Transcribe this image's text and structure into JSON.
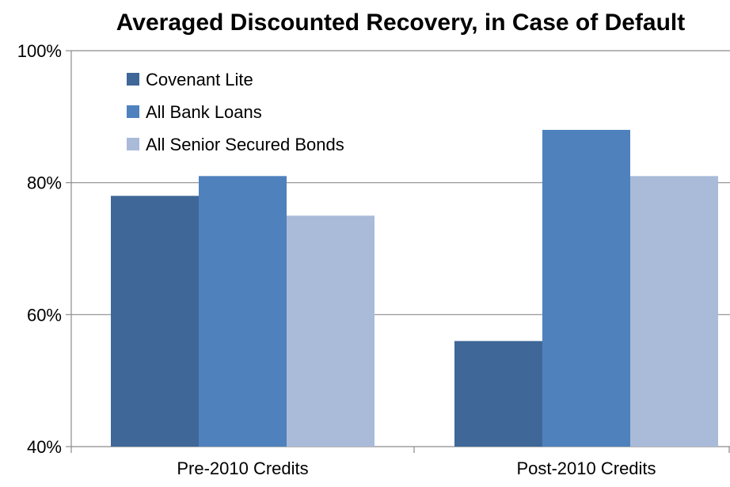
{
  "chart_data": {
    "type": "bar",
    "title": "Averaged Discounted Recovery, in Case of Default",
    "xlabel": "",
    "ylabel": "",
    "categories": [
      "Pre-2010 Credits",
      "Post-2010 Credits"
    ],
    "series": [
      {
        "name": "Covenant Lite",
        "values": [
          78,
          56
        ],
        "color": "#3f6798"
      },
      {
        "name": "All Bank Loans",
        "values": [
          81,
          88
        ],
        "color": "#4f81bd"
      },
      {
        "name": "All Senior Secured Bonds",
        "values": [
          75,
          81
        ],
        "color": "#a9bbd9"
      }
    ],
    "ylim": [
      40,
      100
    ],
    "yticks": [
      40,
      60,
      80,
      100
    ],
    "ytick_labels": [
      "40%",
      "60%",
      "80%",
      "100%"
    ],
    "grid": true,
    "legend_position": "top-left"
  }
}
